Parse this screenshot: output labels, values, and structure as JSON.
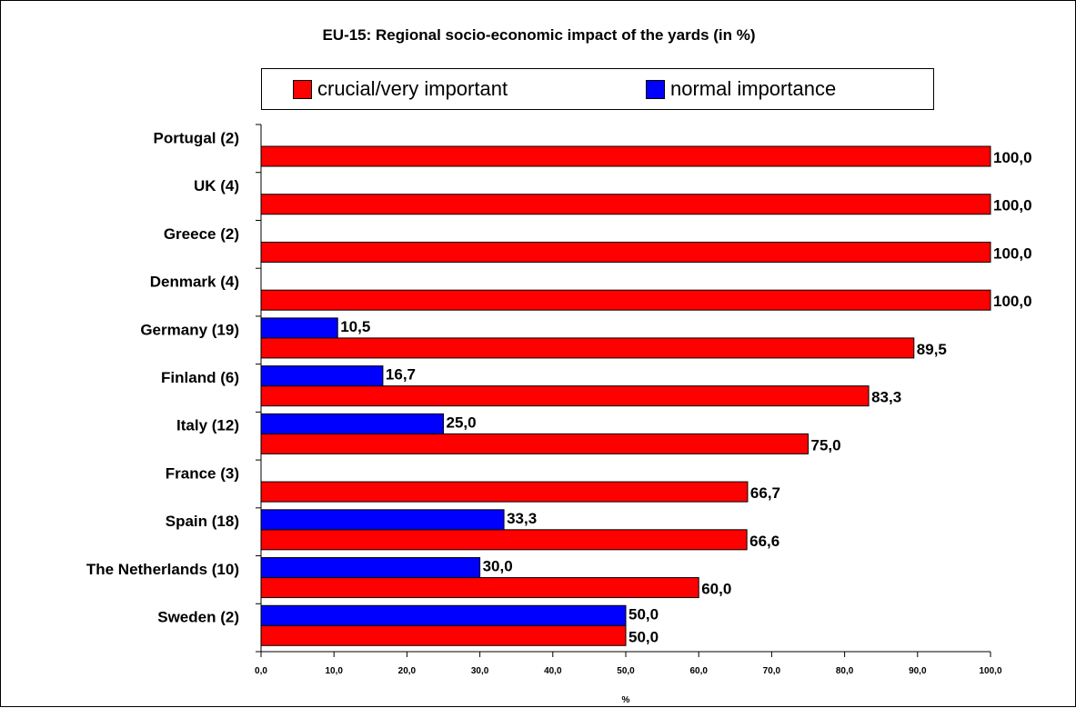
{
  "chart_data": {
    "type": "bar",
    "orientation": "horizontal",
    "title": "EU-15: Regional socio-economic impact of the yards (in %)",
    "xlabel": "%",
    "ylabel": "",
    "xlim": [
      0,
      100
    ],
    "ticks": [
      "0,0",
      "10,0",
      "20,0",
      "30,0",
      "40,0",
      "50,0",
      "60,0",
      "70,0",
      "80,0",
      "90,0",
      "100,0"
    ],
    "legend_position": "top",
    "categories": [
      "Portugal (2)",
      "UK (4)",
      "Greece (2)",
      "Denmark (4)",
      "Germany (19)",
      "Finland (6)",
      "Italy (12)",
      "France (3)",
      "Spain (18)",
      "The Netherlands (10)",
      "Sweden (2)"
    ],
    "series": [
      {
        "name": "normal importance",
        "color": "#0000ff",
        "values": [
          null,
          null,
          null,
          null,
          10.5,
          16.7,
          25.0,
          null,
          33.3,
          30.0,
          50.0
        ],
        "labels": [
          "",
          "",
          "",
          "",
          "10,5",
          "16,7",
          "25,0",
          "",
          "33,3",
          "30,0",
          "50,0"
        ]
      },
      {
        "name": "crucial/very important",
        "color": "#ff0000",
        "values": [
          100.0,
          100.0,
          100.0,
          100.0,
          89.5,
          83.3,
          75.0,
          66.7,
          66.6,
          60.0,
          50.0
        ],
        "labels": [
          "100,0",
          "100,0",
          "100,0",
          "100,0",
          "89,5",
          "83,3",
          "75,0",
          "66,7",
          "66,6",
          "60,0",
          "50,0"
        ]
      }
    ],
    "legend": [
      "crucial/very important",
      "normal importance"
    ]
  }
}
